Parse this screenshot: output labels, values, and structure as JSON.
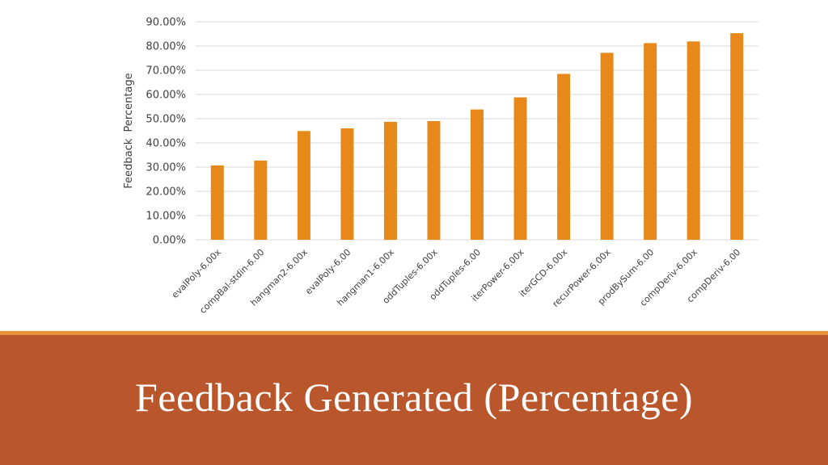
{
  "slide": {
    "title": "Feedback Generated (Percentage)"
  },
  "colors": {
    "bar": "#e6891a",
    "band": "#b9562b",
    "accent_line": "#e8913a",
    "grid": "#d9d9d9",
    "text": "#404040"
  },
  "chart_data": {
    "type": "bar",
    "ylabel": "Feedback  Percentage",
    "xlabel": "",
    "ylim": [
      0,
      90
    ],
    "yticks": [
      0,
      10,
      20,
      30,
      40,
      50,
      60,
      70,
      80,
      90
    ],
    "ytick_labels": [
      "0.00%",
      "10.00%",
      "20.00%",
      "30.00%",
      "40.00%",
      "50.00%",
      "60.00%",
      "70.00%",
      "80.00%",
      "90.00%"
    ],
    "grid": true,
    "legend": "none",
    "categories": [
      "evalPoly-6.00x",
      "compBal-stdin-6.00",
      "hangman2-6.00x",
      "evalPoly-6.00",
      "hangman1-6.00x",
      "oddTuples-6.00x",
      "oddTuples-6.00",
      "iterPower-6.00x",
      "iterGCD-6.00x",
      "recurPower-6.00x",
      "prodBySum-6.00",
      "compDeriv-6.00x",
      "compDeriv-6.00"
    ],
    "values": [
      30.7,
      32.7,
      44.9,
      46.0,
      48.7,
      49.0,
      53.8,
      58.8,
      68.5,
      77.2,
      81.2,
      81.9,
      85.3
    ]
  }
}
